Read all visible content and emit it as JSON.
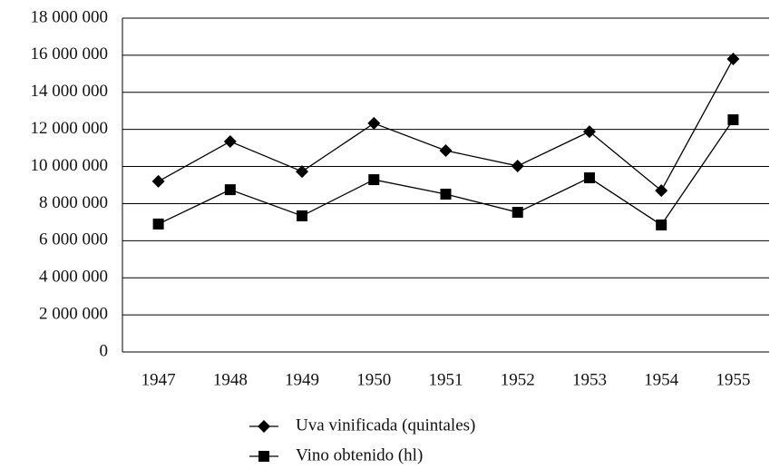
{
  "chart_data": {
    "type": "line",
    "categories": [
      "1947",
      "1948",
      "1949",
      "1950",
      "1951",
      "1952",
      "1953",
      "1954",
      "1955"
    ],
    "series": [
      {
        "name": "Uva vinificada (quintales)",
        "color": "#000000",
        "marker": "diamond",
        "values": [
          9200000,
          11350000,
          9730000,
          12330000,
          10860000,
          10030000,
          11880000,
          8700000,
          15800000
        ]
      },
      {
        "name": "Vino obtenido (hl)",
        "color": "#000000",
        "marker": "square",
        "values": [
          6900000,
          8750000,
          7340000,
          9290000,
          8510000,
          7530000,
          9390000,
          6850000,
          12520000
        ]
      }
    ],
    "ylim": [
      0,
      18000000
    ],
    "yticks": [
      0,
      {
        "value": 2000000,
        "label": "2 000 000"
      },
      {
        "value": 4000000,
        "label": "4 000 000"
      },
      {
        "value": 6000000,
        "label": "6 000 000"
      },
      {
        "value": 8000000,
        "label": "8 000 000"
      },
      {
        "value": 10000000,
        "label": "10 000 000"
      },
      {
        "value": 12000000,
        "label": "12 000 000"
      },
      {
        "value": 14000000,
        "label": "14 000 000"
      },
      {
        "value": 16000000,
        "label": "16 000 000"
      },
      {
        "value": 18000000,
        "label": "18 000 000"
      }
    ],
    "grid": true,
    "legend": "bottom"
  }
}
